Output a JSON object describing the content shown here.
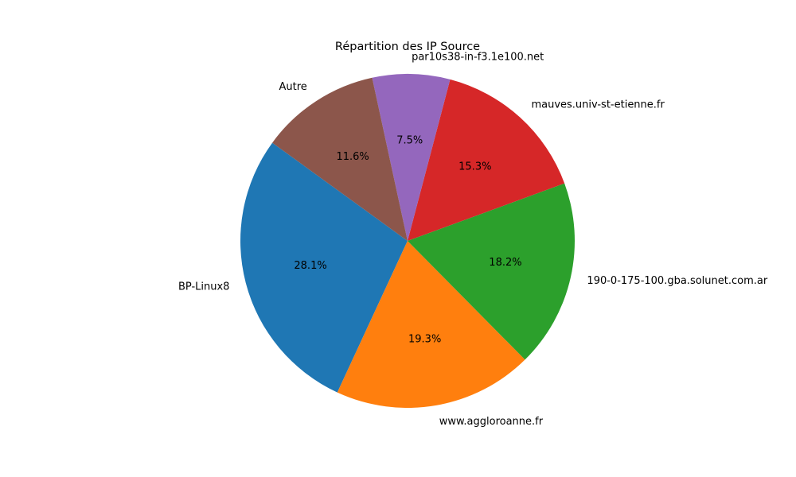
{
  "chart_data": {
    "type": "pie",
    "title": "Répartition des IP Source",
    "start_angle_deg": 144,
    "direction": "counterclockwise",
    "slices": [
      {
        "label": "BP-Linux8",
        "value": 28.1,
        "pct_label": "28.1%",
        "color": "#1f77b4"
      },
      {
        "label": "www.aggloroanne.fr",
        "value": 19.3,
        "pct_label": "19.3%",
        "color": "#ff7f0e"
      },
      {
        "label": "190-0-175-100.gba.solunet.com.ar",
        "value": 18.2,
        "pct_label": "18.2%",
        "color": "#2ca02c"
      },
      {
        "label": "mauves.univ-st-etienne.fr",
        "value": 15.3,
        "pct_label": "15.3%",
        "color": "#d62728"
      },
      {
        "label": "par10s38-in-f3.1e100.net",
        "value": 7.5,
        "pct_label": "7.5%",
        "color": "#9467bd"
      },
      {
        "label": "Autre",
        "value": 11.6,
        "pct_label": "11.6%",
        "color": "#8c564b"
      }
    ]
  }
}
